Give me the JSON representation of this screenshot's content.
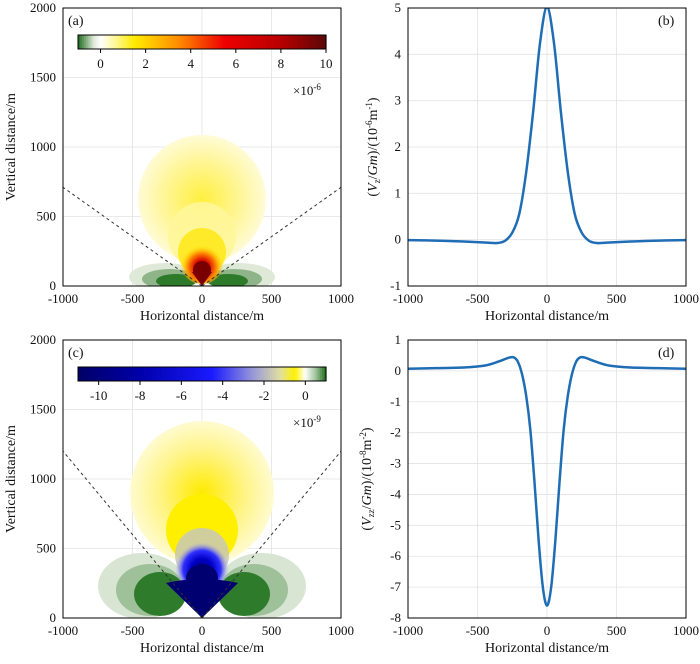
{
  "panels": [
    {
      "panel_label": "(a)",
      "xlabel": "Horizontal distance/m",
      "ylabel": "Vertical distance/m",
      "xticks": [
        "-1000",
        "-500",
        "0",
        "500",
        "1000"
      ],
      "yticks": [
        "0",
        "500",
        "1000",
        "1500",
        "2000"
      ],
      "colorbar": {
        "ticks": [
          "0",
          "2",
          "4",
          "6",
          "8",
          "10"
        ],
        "tick_values": [
          0,
          2,
          4,
          6,
          8,
          10
        ],
        "range": [
          -1,
          10
        ],
        "multiplier_base": "×10",
        "multiplier_exp": "-6",
        "stops": [
          {
            "v": -1.0,
            "color": "#1e6b1e"
          },
          {
            "v": -0.3,
            "color": "#dfe9d8"
          },
          {
            "v": 0.0,
            "color": "#ffffff"
          },
          {
            "v": 0.6,
            "color": "#fff8a0"
          },
          {
            "v": 1.5,
            "color": "#ffec00"
          },
          {
            "v": 3.5,
            "color": "#ff8a00"
          },
          {
            "v": 5.5,
            "color": "#ee0000"
          },
          {
            "v": 8.0,
            "color": "#b80000"
          },
          {
            "v": 10.0,
            "color": "#5a0808"
          }
        ]
      }
    },
    {
      "panel_label": "(b)",
      "xlabel": "Horizontal distance/m",
      "ylabel": "(V_z/Gm)/(10^-6 m^-1)",
      "xticks": [
        "-1000",
        "-500",
        "0",
        "500",
        "1000"
      ],
      "yticks": [
        "-1",
        "0",
        "1",
        "2",
        "3",
        "4",
        "5"
      ]
    },
    {
      "panel_label": "(c)",
      "xlabel": "Horizontal distance/m",
      "ylabel": "Vertical distance/m",
      "xticks": [
        "-1000",
        "-500",
        "0",
        "500",
        "1000"
      ],
      "yticks": [
        "0",
        "500",
        "1000",
        "1500",
        "2000"
      ],
      "colorbar": {
        "ticks": [
          "-10",
          "-8",
          "-6",
          "-4",
          "-2",
          "0"
        ],
        "tick_values": [
          -10,
          -8,
          -6,
          -4,
          -2,
          0
        ],
        "range": [
          -11,
          1
        ],
        "multiplier_base": "×10",
        "multiplier_exp": "-9",
        "stops": [
          {
            "v": -11.0,
            "color": "#000066"
          },
          {
            "v": -8.0,
            "color": "#0000aa"
          },
          {
            "v": -4.5,
            "color": "#1a1aff"
          },
          {
            "v": -2.5,
            "color": "#9a9ad8"
          },
          {
            "v": -1.2,
            "color": "#e0e0a0"
          },
          {
            "v": -0.5,
            "color": "#fff200"
          },
          {
            "v": 0.0,
            "color": "#ffffff"
          },
          {
            "v": 0.5,
            "color": "#a0c49a"
          },
          {
            "v": 1.0,
            "color": "#1e6b1e"
          }
        ]
      }
    },
    {
      "panel_label": "(d)",
      "xlabel": "Horizontal distance/m",
      "ylabel": "(V_zz/Gm)/(10^-8 m^-2)",
      "xticks": [
        "-1000",
        "-500",
        "0",
        "500",
        "1000"
      ],
      "yticks": [
        "-8",
        "-7",
        "-6",
        "-5",
        "-4",
        "-3",
        "-2",
        "-1",
        "0",
        "1"
      ]
    }
  ],
  "chart_data": [
    {
      "panel": "(a)",
      "type": "heatmap",
      "x_range": [
        -1000,
        1000
      ],
      "y_range": [
        0,
        2000
      ],
      "grid": true,
      "value_range": [
        -1,
        10
      ],
      "value_unit_multiplier": "1e-6",
      "features": [
        {
          "kind": "positive-lobe",
          "center": [
            0,
            620
          ],
          "radius": 460
        },
        {
          "kind": "positive-core",
          "center": [
            0,
            100
          ],
          "peak": 10
        },
        {
          "kind": "negative-side-lobes",
          "centers": [
            [
              -250,
              60
            ],
            [
              250,
              60
            ]
          ],
          "min": -1
        },
        {
          "kind": "dashed-boundary",
          "lines": [
            [
              [
                0,
                0
              ],
              [
                -1000,
                710
              ]
            ],
            [
              [
                0,
                0
              ],
              [
                1000,
                710
              ]
            ]
          ]
        }
      ]
    },
    {
      "panel": "(b)",
      "type": "line",
      "x_range": [
        -1000,
        1000
      ],
      "y_range": [
        -1,
        5
      ],
      "grid": true,
      "x": [
        -1000,
        -800,
        -600,
        -450,
        -400,
        -350,
        -300,
        -250,
        -200,
        -150,
        -100,
        -50,
        0,
        50,
        100,
        150,
        200,
        250,
        300,
        350,
        400,
        450,
        600,
        800,
        1000
      ],
      "y": [
        -0.01,
        -0.02,
        -0.04,
        -0.06,
        -0.07,
        -0.07,
        -0.02,
        0.15,
        0.55,
        1.45,
        2.75,
        4.25,
        5.02,
        4.25,
        2.75,
        1.45,
        0.55,
        0.15,
        -0.02,
        -0.07,
        -0.07,
        -0.06,
        -0.04,
        -0.02,
        -0.01
      ]
    },
    {
      "panel": "(c)",
      "type": "heatmap",
      "x_range": [
        -1000,
        1000
      ],
      "y_range": [
        0,
        2000
      ],
      "grid": true,
      "value_range": [
        -10,
        1
      ],
      "value_unit_multiplier": "1e-9",
      "features": [
        {
          "kind": "positive-lobe",
          "center": [
            0,
            900
          ],
          "radius": 520
        },
        {
          "kind": "negative-core",
          "center": [
            0,
            250
          ],
          "min": -10
        },
        {
          "kind": "green-side-lobes",
          "centers": [
            [
              -430,
              230
            ],
            [
              430,
              230
            ]
          ]
        },
        {
          "kind": "dashed-boundary",
          "lines": [
            [
              [
                0,
                0
              ],
              [
                -1000,
                1200
              ]
            ],
            [
              [
                0,
                0
              ],
              [
                1000,
                1200
              ]
            ]
          ]
        }
      ]
    },
    {
      "panel": "(d)",
      "type": "line",
      "x_range": [
        -1000,
        1000
      ],
      "y_range": [
        -8,
        1
      ],
      "grid": true,
      "x": [
        -1000,
        -800,
        -600,
        -450,
        -350,
        -280,
        -240,
        -210,
        -180,
        -150,
        -120,
        -90,
        -60,
        -30,
        0,
        30,
        60,
        90,
        120,
        150,
        180,
        210,
        240,
        280,
        350,
        450,
        600,
        800,
        1000
      ],
      "y": [
        0.07,
        0.09,
        0.11,
        0.17,
        0.3,
        0.42,
        0.44,
        0.3,
        -0.1,
        -0.8,
        -1.9,
        -3.6,
        -5.5,
        -7.0,
        -7.6,
        -7.0,
        -5.5,
        -3.6,
        -1.9,
        -0.8,
        -0.1,
        0.3,
        0.44,
        0.42,
        0.3,
        0.17,
        0.11,
        0.09,
        0.07
      ]
    }
  ]
}
